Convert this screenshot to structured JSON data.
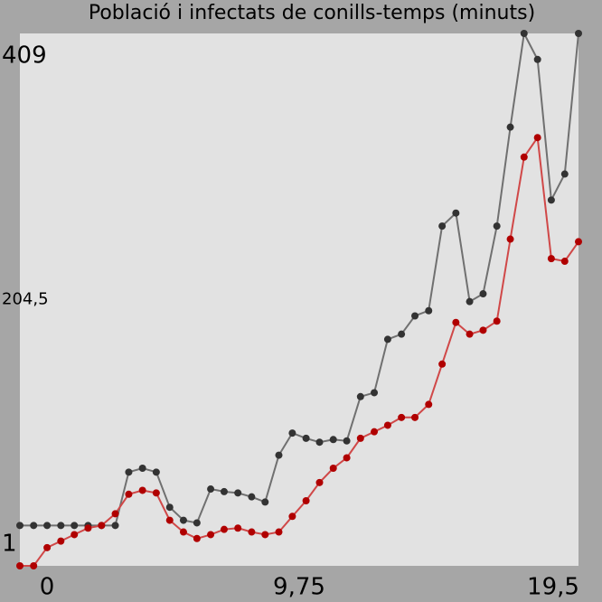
{
  "chart_data": {
    "type": "line",
    "title": "Població i infectats de conills-temps (minuts)",
    "x": [
      0,
      0.48,
      0.95,
      1.43,
      1.9,
      2.38,
      2.85,
      3.33,
      3.8,
      4.28,
      4.76,
      5.23,
      5.71,
      6.18,
      6.66,
      7.13,
      7.61,
      8.09,
      8.56,
      9.04,
      9.51,
      9.99,
      10.46,
      10.94,
      11.41,
      11.89,
      12.37,
      12.84,
      13.32,
      13.79,
      14.27,
      14.74,
      15.22,
      15.7,
      16.17,
      16.65,
      17.12,
      17.6,
      18.07,
      18.55,
      19.02,
      19.5
    ],
    "series": [
      {
        "color": "#333333",
        "line_color": "#707070",
        "values": [
          31,
          31,
          31,
          31,
          31,
          31,
          31,
          31,
          72,
          75,
          72,
          45,
          35,
          33,
          59,
          57,
          56,
          53,
          49,
          85,
          102,
          98,
          95,
          97,
          96,
          130,
          133,
          174,
          178,
          192,
          196,
          261,
          271,
          203,
          209,
          261,
          337,
          409,
          389,
          281,
          301,
          409
        ]
      },
      {
        "color": "#b00000",
        "line_color": "#d04848",
        "values": [
          0,
          0,
          14,
          19,
          24,
          29,
          31,
          40,
          55,
          58,
          56,
          35,
          26,
          21,
          24,
          28,
          29,
          26,
          24,
          26,
          38,
          50,
          64,
          75,
          83,
          98,
          103,
          108,
          114,
          114,
          124,
          155,
          187,
          178,
          181,
          188,
          251,
          314,
          329,
          236,
          234,
          249
        ]
      }
    ],
    "xlim": [
      0,
      19.5
    ],
    "xticks": [
      0,
      {
        "value": 9.75,
        "label": "9,75"
      },
      {
        "value": 19.5,
        "label": "19,5"
      }
    ],
    "ylim": [
      0,
      409
    ],
    "yticks": [
      1,
      {
        "value": 204.5,
        "label": "204,5"
      },
      409
    ],
    "grid": false
  }
}
